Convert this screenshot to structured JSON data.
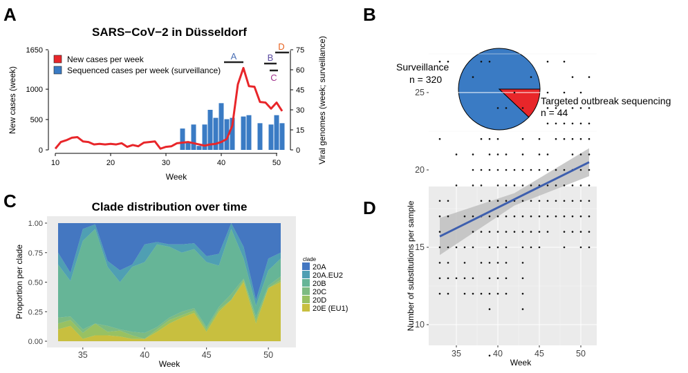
{
  "panels": {
    "A": "A",
    "B": "B",
    "C": "C",
    "D": "D"
  },
  "panelA": {
    "title": "SARS−CoV−2 in Düsseldorf",
    "xlabel": "Week",
    "ylabel_left": "New cases (week)",
    "ylabel_right": "Viral genomes (week; surveillance)",
    "xticks": [
      "10",
      "20",
      "30",
      "40",
      "50"
    ],
    "yticks_left": [
      "0",
      "500",
      "1000",
      "1650"
    ],
    "yticks_right": [
      "0",
      "15",
      "30",
      "45",
      "60",
      "75"
    ],
    "legend": [
      "New cases per week",
      "Sequenced cases per week (surveillance)"
    ],
    "annotations": [
      {
        "text": "A",
        "color": "#4a6fb5"
      },
      {
        "text": "B",
        "color": "#5a4aa0"
      },
      {
        "text": "C",
        "color": "#a0308a"
      },
      {
        "text": "D",
        "color": "#e8601c"
      }
    ]
  },
  "panelB": {
    "label_surveillance": "Surveillance",
    "label_surveillance_n": "n =  320",
    "label_targeted": "Targeted outbreak sequencing",
    "label_targeted_n": "n =  44"
  },
  "panelC": {
    "title": "Clade distribution over time",
    "xlabel": "Week",
    "ylabel": "Proportion per clade",
    "xticks": [
      "35",
      "40",
      "45",
      "50"
    ],
    "yticks": [
      "0.00",
      "0.25",
      "0.50",
      "0.75",
      "1.00"
    ],
    "legend_title": "clade",
    "legend": [
      "20A",
      "20A.EU2",
      "20B",
      "20C",
      "20D",
      "20E (EU1)"
    ]
  },
  "panelD": {
    "xlabel": "Week",
    "ylabel": "Number of substitutions per sample",
    "xticks": [
      "35",
      "40",
      "45",
      "50"
    ],
    "yticks": [
      "10",
      "15",
      "20",
      "25"
    ]
  },
  "colors": {
    "red": "#e8262a",
    "blue": "#3a7bc4",
    "c20A": "#4477c1",
    "c20AEU2": "#4f9fb3",
    "c20B": "#66b597",
    "c20C": "#7dbb82",
    "c20D": "#98c162",
    "c20E": "#c8bf3f",
    "fitline": "#3e5fae",
    "panelbg": "#ebebeb"
  },
  "chart_data": [
    {
      "type": "line",
      "title": "SARS−CoV−2 in Düsseldorf",
      "xlabel": "Week",
      "ylabel": "New cases (week)",
      "xlim": [
        9,
        51.5
      ],
      "ylim": [
        0,
        1650
      ],
      "series": [
        {
          "name": "New cases per week",
          "x": [
            10,
            11,
            12,
            13,
            14,
            15,
            16,
            17,
            18,
            19,
            20,
            21,
            22,
            23,
            24,
            25,
            26,
            27,
            28,
            29,
            30,
            31,
            32,
            33,
            34,
            35,
            36,
            37,
            38,
            39,
            40,
            41,
            42,
            43,
            44,
            45,
            46,
            47,
            48,
            49,
            50,
            51
          ],
          "values": [
            20,
            130,
            160,
            200,
            210,
            140,
            130,
            90,
            100,
            90,
            100,
            90,
            110,
            50,
            80,
            60,
            120,
            130,
            140,
            20,
            50,
            60,
            110,
            120,
            130,
            110,
            90,
            70,
            90,
            100,
            130,
            180,
            400,
            1080,
            1350,
            1050,
            1040,
            790,
            780,
            680,
            780,
            640
          ]
        }
      ]
    },
    {
      "type": "bar",
      "xlabel": "Week",
      "ylabel": "Viral genomes (week; surveillance)",
      "ylim": [
        0,
        75
      ],
      "series": [
        {
          "name": "Sequenced cases per week (surveillance)",
          "x": [
            33,
            34,
            35,
            36,
            37,
            38,
            39,
            40,
            41,
            42,
            43,
            44,
            45,
            46,
            47,
            48,
            49,
            50,
            51
          ],
          "values": [
            16,
            6,
            19,
            3,
            19,
            30,
            24,
            35,
            23,
            24,
            0,
            25,
            26,
            0,
            20,
            0,
            19,
            26,
            20
          ]
        }
      ]
    },
    {
      "type": "pie",
      "labels": [
        "Surveillance",
        "Targeted outbreak sequencing"
      ],
      "values": [
        320,
        44
      ]
    },
    {
      "type": "area",
      "title": "Clade distribution over time",
      "xlabel": "Week",
      "ylabel": "Proportion per clade",
      "ylim": [
        0,
        1
      ],
      "x": [
        33,
        34,
        35,
        36,
        37,
        38,
        39,
        40,
        41,
        42,
        43,
        44,
        45,
        46,
        47,
        48,
        49,
        50,
        51
      ],
      "stacking": "proportion",
      "series": [
        {
          "name": "20E (EU1)",
          "values": [
            0.1,
            0.13,
            0.02,
            0.05,
            0.05,
            0.04,
            0.02,
            0.02,
            0.08,
            0.15,
            0.2,
            0.24,
            0.08,
            0.25,
            0.35,
            0.5,
            0.15,
            0.45,
            0.5
          ]
        },
        {
          "name": "20D",
          "values": [
            0.05,
            0.05,
            0.05,
            0.1,
            0.03,
            0.05,
            0.03,
            0.0,
            0.02,
            0.03,
            0.02,
            0.02,
            0.02,
            0.02,
            0.0,
            0.02,
            0.03,
            0.0,
            0.02
          ]
        },
        {
          "name": "20C",
          "values": [
            0.05,
            0.03,
            0.03,
            0.0,
            0.05,
            0.01,
            0.03,
            0.05,
            0.02,
            0.02,
            0.03,
            0.02,
            0.02,
            0.02,
            0.05,
            0.01,
            0.03,
            0.02,
            0.03
          ]
        },
        {
          "name": "20B",
          "values": [
            0.45,
            0.3,
            0.75,
            0.8,
            0.5,
            0.4,
            0.55,
            0.6,
            0.7,
            0.6,
            0.5,
            0.5,
            0.55,
            0.35,
            0.55,
            0.17,
            0.09,
            0.13,
            0.15
          ]
        },
        {
          "name": "20A.EU2",
          "values": [
            0.1,
            0.07,
            0.1,
            0.04,
            0.05,
            0.1,
            0.02,
            0.15,
            0.02,
            0.02,
            0.07,
            0.05,
            0.05,
            0.1,
            0.05,
            0.1,
            0.05,
            0.1,
            0.05
          ]
        },
        {
          "name": "20A",
          "values": [
            0.25,
            0.42,
            0.05,
            0.01,
            0.32,
            0.4,
            0.35,
            0.18,
            0.16,
            0.18,
            0.18,
            0.17,
            0.28,
            0.26,
            0.0,
            0.2,
            0.65,
            0.3,
            0.25
          ]
        }
      ]
    },
    {
      "type": "scatter",
      "xlabel": "Week",
      "ylabel": "Number of substitutions per sample",
      "xlim": [
        32,
        51.5
      ],
      "ylim": [
        7.5,
        28
      ],
      "fit": {
        "x": [
          33,
          51
        ],
        "y": [
          15.7,
          20.5
        ]
      },
      "points": [
        [
          33,
          27
        ],
        [
          34,
          27
        ],
        [
          33,
          22
        ],
        [
          33,
          18
        ],
        [
          34,
          18
        ],
        [
          33,
          17
        ],
        [
          34,
          17
        ],
        [
          33,
          16
        ],
        [
          33,
          15
        ],
        [
          34,
          15
        ],
        [
          35,
          15
        ],
        [
          33,
          14
        ],
        [
          34,
          14
        ],
        [
          33,
          13
        ],
        [
          34,
          13
        ],
        [
          35,
          13
        ],
        [
          33,
          12
        ],
        [
          34,
          12
        ],
        [
          35,
          21
        ],
        [
          35,
          19
        ],
        [
          36,
          17
        ],
        [
          36,
          15
        ],
        [
          36,
          14
        ],
        [
          36,
          13
        ],
        [
          36,
          12
        ],
        [
          37,
          26
        ],
        [
          37,
          21
        ],
        [
          37,
          20
        ],
        [
          37,
          19
        ],
        [
          37,
          17
        ],
        [
          37,
          16
        ],
        [
          37,
          15
        ],
        [
          37,
          13
        ],
        [
          37,
          12
        ],
        [
          38,
          27
        ],
        [
          38,
          22
        ],
        [
          38,
          20
        ],
        [
          38,
          19
        ],
        [
          38,
          18
        ],
        [
          38,
          17
        ],
        [
          38,
          16
        ],
        [
          38,
          14
        ],
        [
          38,
          12
        ],
        [
          39,
          27
        ],
        [
          39,
          22
        ],
        [
          39,
          21
        ],
        [
          39,
          20
        ],
        [
          39,
          18
        ],
        [
          39,
          17
        ],
        [
          39,
          16
        ],
        [
          39,
          15
        ],
        [
          39,
          14
        ],
        [
          39,
          13
        ],
        [
          39,
          12
        ],
        [
          39,
          11
        ],
        [
          39,
          8
        ],
        [
          40,
          24
        ],
        [
          40,
          22
        ],
        [
          40,
          21
        ],
        [
          40,
          20
        ],
        [
          40,
          19
        ],
        [
          40,
          18
        ],
        [
          40,
          17
        ],
        [
          40,
          16
        ],
        [
          40,
          15
        ],
        [
          40,
          14
        ],
        [
          40,
          13
        ],
        [
          40,
          12
        ],
        [
          41,
          24
        ],
        [
          41,
          21
        ],
        [
          41,
          20
        ],
        [
          41,
          19
        ],
        [
          41,
          18
        ],
        [
          41,
          17
        ],
        [
          41,
          16
        ],
        [
          41,
          15
        ],
        [
          41,
          14
        ],
        [
          41,
          13
        ],
        [
          41,
          12
        ],
        [
          42,
          25
        ],
        [
          42,
          20
        ],
        [
          42,
          19
        ],
        [
          42,
          18
        ],
        [
          42,
          17
        ],
        [
          42,
          16
        ],
        [
          43,
          24
        ],
        [
          43,
          22
        ],
        [
          43,
          21
        ],
        [
          43,
          20
        ],
        [
          43,
          19
        ],
        [
          43,
          18
        ],
        [
          43,
          17
        ],
        [
          43,
          16
        ],
        [
          43,
          15
        ],
        [
          43,
          14
        ],
        [
          43,
          13
        ],
        [
          43,
          12
        ],
        [
          43,
          11
        ],
        [
          44,
          26
        ],
        [
          44,
          20
        ],
        [
          44,
          19
        ],
        [
          44,
          18
        ],
        [
          44,
          17
        ],
        [
          44,
          16
        ],
        [
          44,
          15
        ],
        [
          45,
          22
        ],
        [
          45,
          21
        ],
        [
          45,
          20
        ],
        [
          45,
          19
        ],
        [
          45,
          18
        ],
        [
          45,
          17
        ],
        [
          45,
          16
        ],
        [
          45,
          15
        ],
        [
          46,
          27
        ],
        [
          46,
          25
        ],
        [
          46,
          24
        ],
        [
          46,
          23
        ],
        [
          46,
          21
        ],
        [
          46,
          20
        ],
        [
          46,
          19
        ],
        [
          46,
          18
        ],
        [
          46,
          17
        ],
        [
          46,
          16
        ],
        [
          47,
          24
        ],
        [
          47,
          23
        ],
        [
          47,
          22
        ],
        [
          47,
          20
        ],
        [
          47,
          19
        ],
        [
          47,
          18
        ],
        [
          47,
          17
        ],
        [
          48,
          27
        ],
        [
          48,
          25
        ],
        [
          48,
          23
        ],
        [
          48,
          22
        ],
        [
          48,
          20
        ],
        [
          48,
          19
        ],
        [
          48,
          18
        ],
        [
          48,
          17
        ],
        [
          48,
          16
        ],
        [
          48,
          15
        ],
        [
          49,
          26
        ],
        [
          49,
          24
        ],
        [
          49,
          23
        ],
        [
          49,
          22
        ],
        [
          49,
          21
        ],
        [
          49,
          20
        ],
        [
          49,
          19
        ],
        [
          49,
          18
        ],
        [
          49,
          17
        ],
        [
          49,
          16
        ],
        [
          50,
          25
        ],
        [
          50,
          24
        ],
        [
          50,
          23
        ],
        [
          50,
          22
        ],
        [
          50,
          21
        ],
        [
          50,
          20
        ],
        [
          50,
          19
        ],
        [
          50,
          18
        ],
        [
          50,
          17
        ],
        [
          50,
          16
        ],
        [
          50,
          15
        ],
        [
          51,
          26
        ],
        [
          51,
          24
        ],
        [
          51,
          23
        ],
        [
          51,
          22
        ],
        [
          51,
          21
        ],
        [
          51,
          20
        ],
        [
          51,
          19
        ],
        [
          51,
          18
        ],
        [
          51,
          17
        ],
        [
          51,
          16
        ],
        [
          51,
          15
        ]
      ]
    }
  ]
}
